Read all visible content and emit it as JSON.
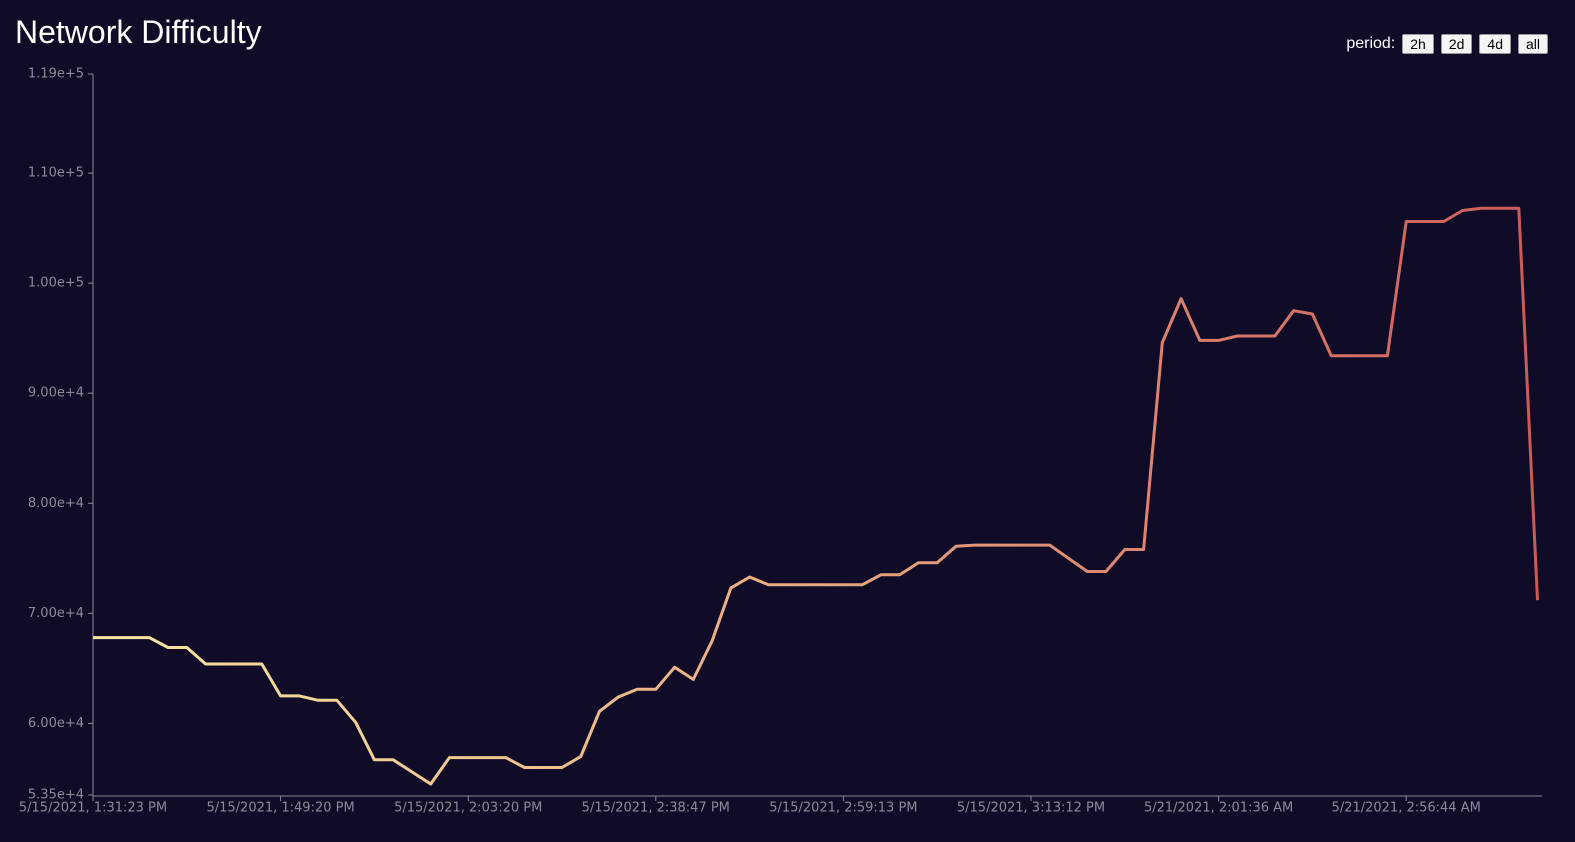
{
  "chart_data": {
    "type": "line",
    "title": "Network Difficulty",
    "categories": [
      "5/15/2021, 1:31:23 PM",
      null,
      null,
      null,
      null,
      null,
      null,
      null,
      null,
      null,
      "5/15/2021, 1:49:20 PM",
      null,
      null,
      null,
      null,
      null,
      null,
      null,
      null,
      null,
      "5/15/2021, 2:03:20 PM",
      null,
      null,
      null,
      null,
      null,
      null,
      null,
      null,
      null,
      "5/15/2021, 2:38:47 PM",
      null,
      null,
      null,
      null,
      null,
      null,
      null,
      null,
      null,
      "5/15/2021, 2:59:13 PM",
      null,
      null,
      null,
      null,
      null,
      null,
      null,
      null,
      null,
      "5/15/2021, 3:13:12 PM",
      null,
      null,
      null,
      null,
      null,
      null,
      null,
      null,
      null,
      "5/21/2021, 2:01:36 AM",
      null,
      null,
      null,
      null,
      null,
      null,
      null,
      null,
      null,
      "5/21/2021, 2:56:44 AM",
      null,
      null,
      null,
      null,
      null,
      null,
      null
    ],
    "values": [
      67800,
      67800,
      67800,
      67800,
      66900,
      66900,
      65400,
      65400,
      65400,
      65400,
      62500,
      62500,
      62100,
      62100,
      60100,
      56700,
      56700,
      55600,
      54500,
      56900,
      56900,
      56900,
      56900,
      56000,
      56000,
      56000,
      57000,
      61100,
      62400,
      63100,
      63100,
      65100,
      64000,
      67500,
      72300,
      73300,
      72600,
      72600,
      72600,
      72600,
      72600,
      72600,
      73500,
      73500,
      74600,
      74600,
      76100,
      76200,
      76200,
      76200,
      76200,
      76200,
      75000,
      73800,
      73800,
      75800,
      75800,
      94600,
      98600,
      94800,
      94800,
      95200,
      95200,
      95200,
      97500,
      97200,
      93400,
      93400,
      93400,
      93400,
      105600,
      105600,
      105600,
      106600,
      106800,
      106800,
      106800,
      71200
    ],
    "gradient": [
      "#f8e8a2",
      "#eaa880",
      "#cb5a58"
    ],
    "ylim": [
      53500,
      119000
    ],
    "yticks": [
      {
        "value": 53500,
        "label": "5.35e+4"
      },
      {
        "value": 60000,
        "label": "6.00e+4"
      },
      {
        "value": 70000,
        "label": "7.00e+4"
      },
      {
        "value": 80000,
        "label": "8.00e+4"
      },
      {
        "value": 90000,
        "label": "9.00e+4"
      },
      {
        "value": 100000,
        "label": "1.00e+5"
      },
      {
        "value": 110000,
        "label": "1.10e+5"
      },
      {
        "value": 119000,
        "label": "1.19e+5"
      }
    ]
  },
  "controls": {
    "label": "period:",
    "options": [
      "2h",
      "2d",
      "4d",
      "all"
    ]
  }
}
